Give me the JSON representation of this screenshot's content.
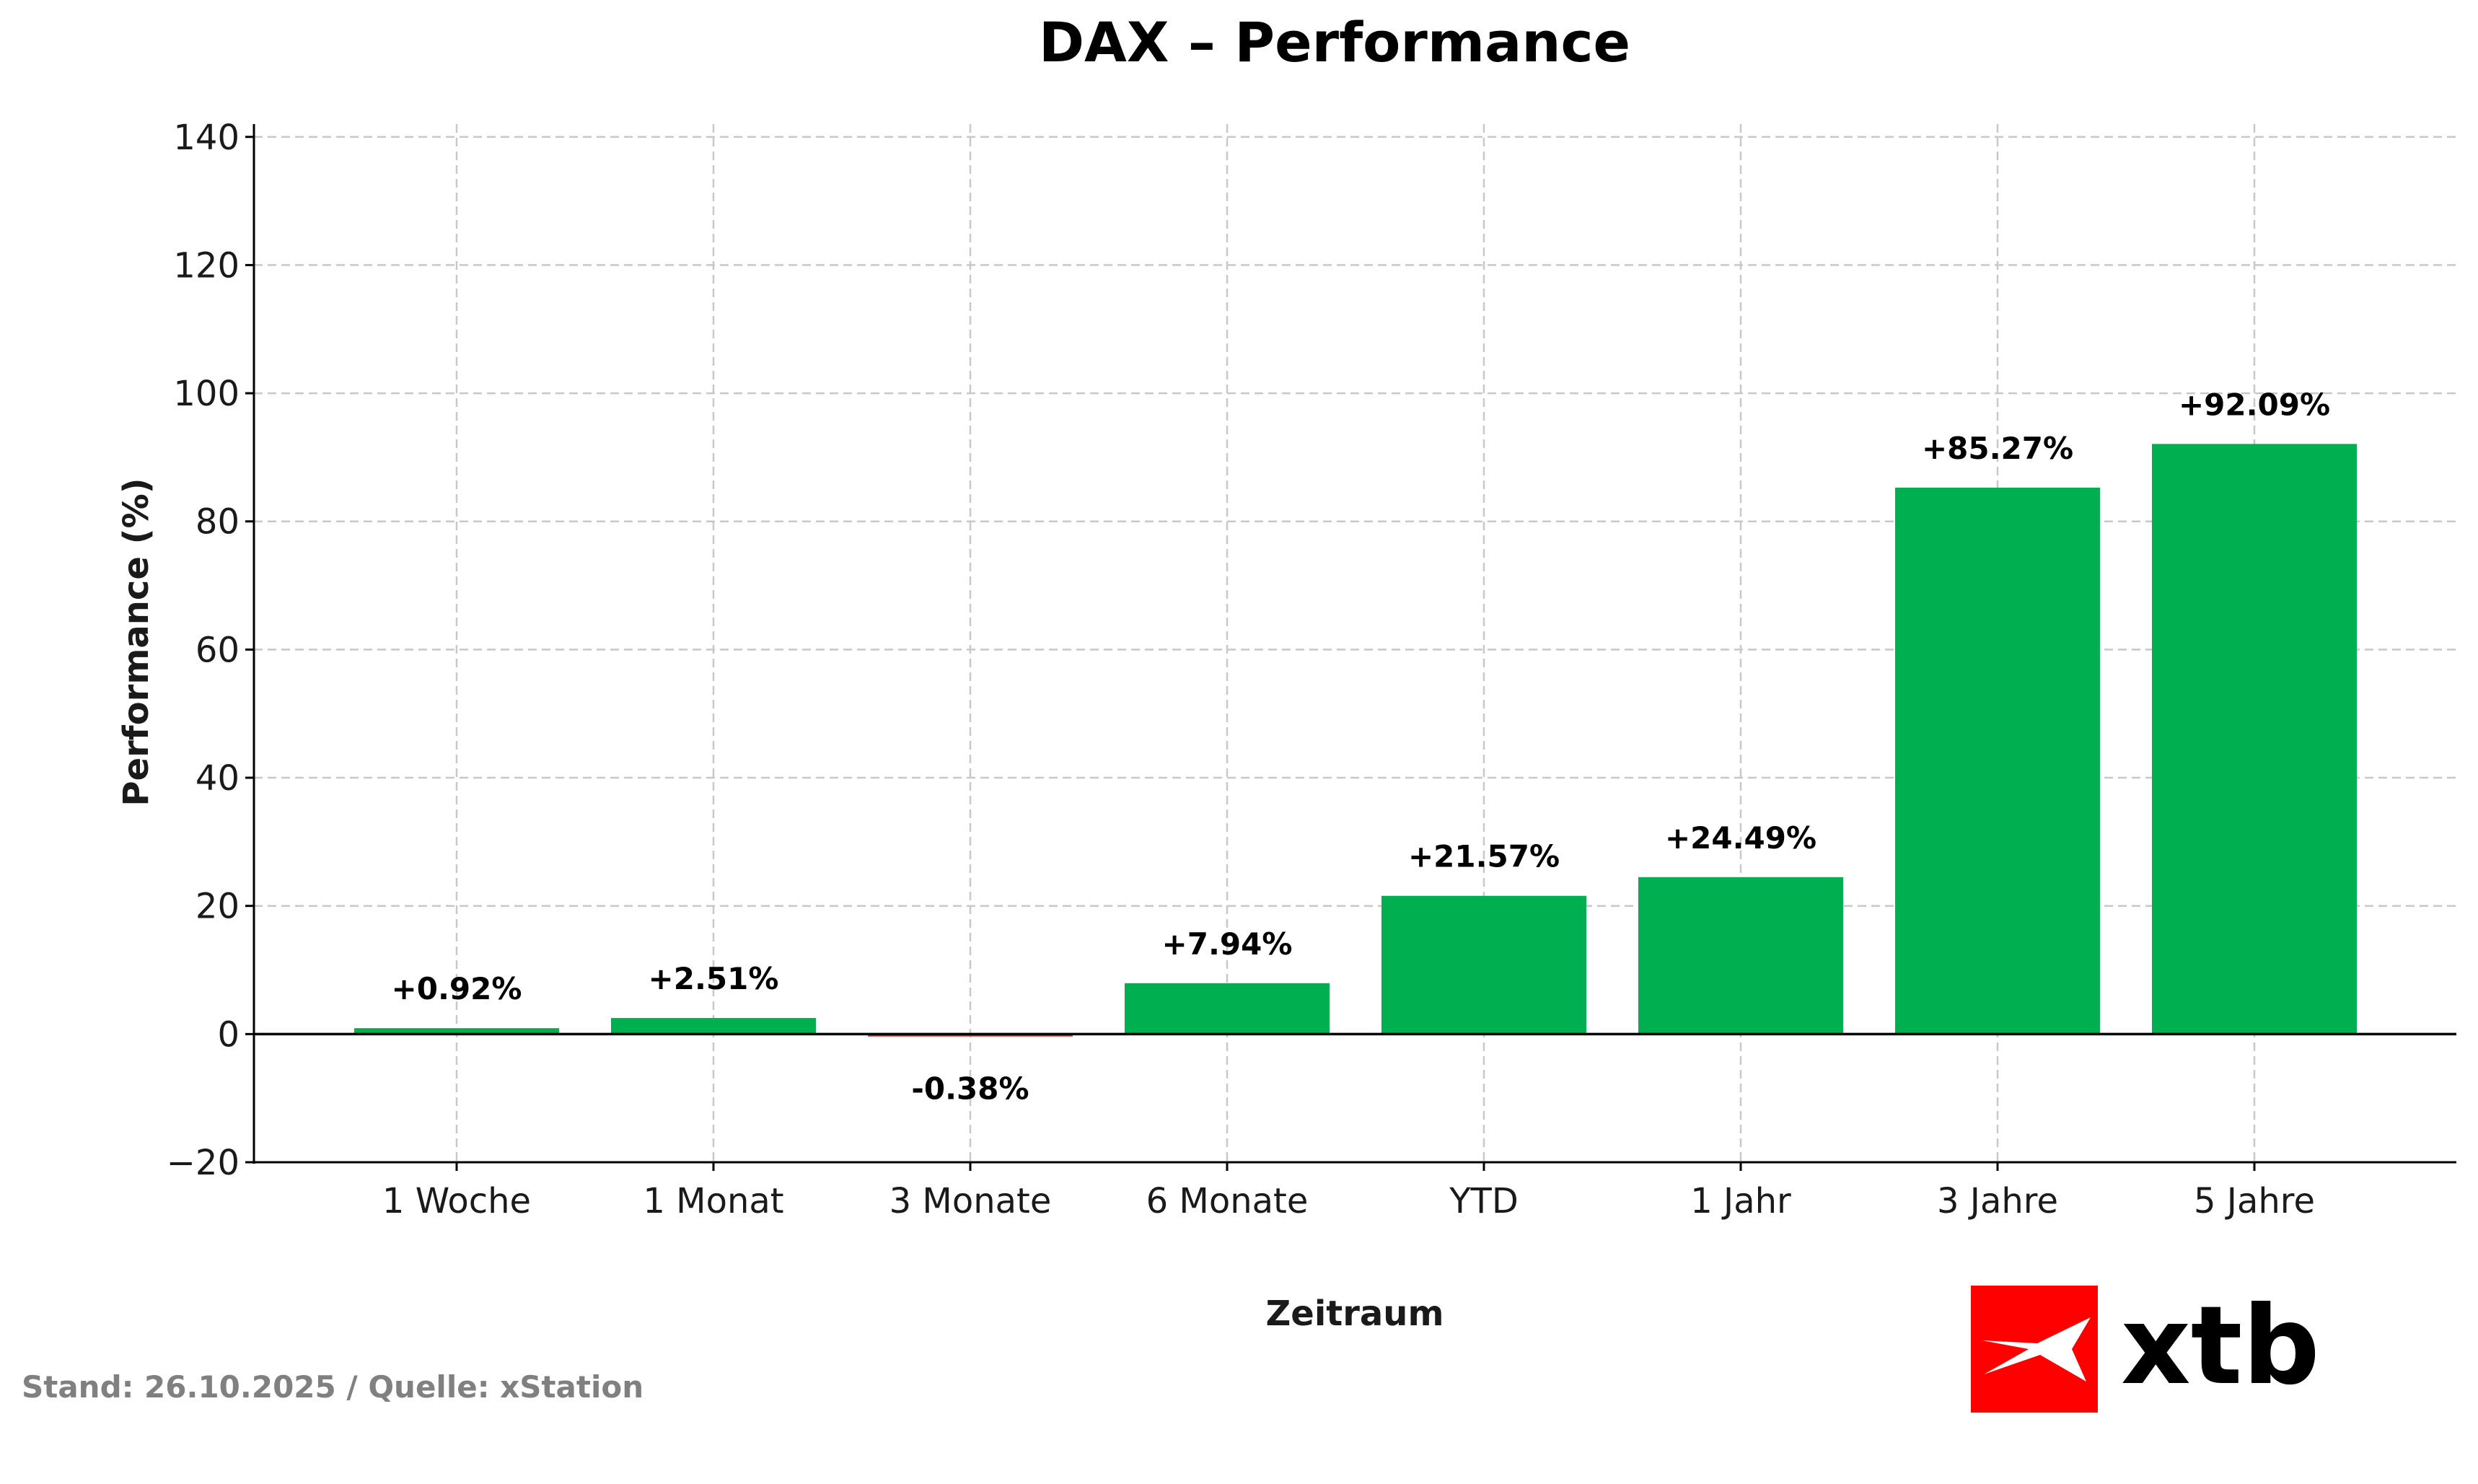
{
  "footer": {
    "source": "Stand: 26.10.2025 / Quelle: xStation"
  },
  "logo": {
    "text": "xtb",
    "icon": "xtb-logo-icon",
    "color": "#ff0000"
  },
  "chart_data": {
    "type": "bar",
    "title": "DAX – Performance",
    "xlabel": "Zeitraum",
    "ylabel": "Performance (%)",
    "ylim": [
      -20,
      142
    ],
    "yticks": [
      {
        "value": -20,
        "label": "−20"
      },
      {
        "value": 0,
        "label": "0"
      },
      {
        "value": 20,
        "label": "20"
      },
      {
        "value": 40,
        "label": "40"
      },
      {
        "value": 60,
        "label": "60"
      },
      {
        "value": 80,
        "label": "80"
      },
      {
        "value": 100,
        "label": "100"
      },
      {
        "value": 120,
        "label": "120"
      },
      {
        "value": 140,
        "label": "140"
      }
    ],
    "categories": [
      "1 Woche",
      "1 Monat",
      "3 Monate",
      "6 Monate",
      "YTD",
      "1 Jahr",
      "3 Jahre",
      "5 Jahre"
    ],
    "values": [
      0.92,
      2.51,
      -0.38,
      7.94,
      21.57,
      24.49,
      85.27,
      92.09
    ],
    "data_labels": [
      "+0.92%",
      "+2.51%",
      "-0.38%",
      "+7.94%",
      "+21.57%",
      "+24.49%",
      "+85.27%",
      "+92.09%"
    ],
    "grid": true,
    "legend": "none",
    "colors": {
      "positive": "#00b050",
      "negative": "#c0392b",
      "grid": "#c8c8c8",
      "axis": "#000000"
    }
  }
}
